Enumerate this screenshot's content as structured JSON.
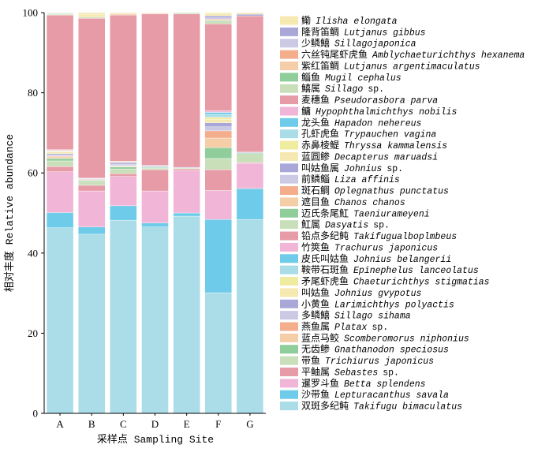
{
  "chart_data": {
    "type": "bar",
    "stacked": true,
    "categories": [
      "A",
      "B",
      "C",
      "D",
      "E",
      "F",
      "G"
    ],
    "xlabel": "采样点 Sampling Site",
    "ylabel": "相对丰度 Relative abundance",
    "ylim": [
      0,
      100
    ],
    "yticks": [
      0,
      20,
      40,
      60,
      80,
      100
    ],
    "legend_position": "right",
    "series": [
      {
        "cn": "鳓",
        "sci": "Ilisha elongata",
        "suffix": "",
        "color": "#f5e8b1",
        "values": [
          0,
          0.4,
          0,
          0.1,
          0,
          0,
          0
        ]
      },
      {
        "cn": "隆背笛鲷",
        "sci": "Lutjanus gibbus",
        "suffix": "",
        "color": "#a9a7d8",
        "values": [
          0,
          0,
          0,
          0,
          0,
          0,
          0
        ]
      },
      {
        "cn": "少鳞鱚",
        "sci": "Sillagojaponica",
        "suffix": "",
        "color": "#cbc9e4",
        "values": [
          0,
          0,
          0,
          0,
          0,
          0,
          0
        ]
      },
      {
        "cn": "六丝钝尾虾虎鱼",
        "sci": "Amblychaeturichthys hexanema",
        "suffix": "",
        "color": "#f4ae8c",
        "values": [
          0,
          0,
          0,
          0,
          0,
          0,
          0
        ]
      },
      {
        "cn": "紫红笛鲷",
        "sci": "Lutjanus argentimaculatus",
        "suffix": "",
        "color": "#f5cea8",
        "values": [
          0,
          0,
          0,
          0,
          0,
          0,
          0
        ]
      },
      {
        "cn": "鲻鱼",
        "sci": "Mugil cephalus",
        "suffix": "",
        "color": "#8fce9b",
        "values": [
          0.1,
          0,
          0,
          0,
          0,
          0,
          0
        ]
      },
      {
        "cn": "鱚属",
        "sci": "Sillago",
        "suffix": "sp.",
        "color": "#c9dfba",
        "values": [
          0.2,
          0,
          0,
          0,
          0.3,
          0,
          0
        ]
      },
      {
        "cn": "麦穗鱼",
        "sci": "Pseudorasbora parva",
        "suffix": "",
        "color": "#e69ba6",
        "values": [
          0,
          0,
          0,
          0,
          0,
          0,
          0
        ]
      },
      {
        "cn": "鳙",
        "sci": "Hypophthalmichthys nobilis",
        "suffix": "",
        "color": "#f0b5d7",
        "values": [
          0,
          0,
          0,
          0,
          0,
          0,
          0
        ]
      },
      {
        "cn": "龙头鱼",
        "sci": "Hapadon nehereus",
        "suffix": "",
        "color": "#6ecbe9",
        "values": [
          0,
          0,
          0,
          0,
          0,
          0,
          0
        ]
      },
      {
        "cn": "孔虾虎鱼",
        "sci": "Trypauchen vagina",
        "suffix": "",
        "color": "#aadde8",
        "values": [
          0,
          0,
          0,
          0,
          0,
          0,
          0
        ]
      },
      {
        "cn": "赤鼻棱鳀",
        "sci": "Thryssa kammalensis",
        "suffix": "",
        "color": "#efeb9f",
        "values": [
          0,
          0,
          0,
          0,
          0,
          0.3,
          0
        ]
      },
      {
        "cn": "蓝圆鲹",
        "sci": "Decapterus maruadsi",
        "suffix": "",
        "color": "#f5e8b1",
        "values": [
          0,
          0.7,
          0.3,
          0,
          0,
          0.5,
          0.4
        ]
      },
      {
        "cn": "叫姑鱼属",
        "sci": "Johnius",
        "suffix": "sp.",
        "color": "#a9a7d8",
        "values": [
          0,
          0,
          0,
          0,
          0,
          0.5,
          0.4
        ]
      },
      {
        "cn": "前鳞鲻",
        "sci": "Liza affinis",
        "suffix": "",
        "color": "#cbc9e4",
        "values": [
          0,
          0,
          0,
          0,
          0,
          0.3,
          0
        ]
      },
      {
        "cn": "斑石鲷",
        "sci": "Oplegnathus punctatus",
        "suffix": "",
        "color": "#f4ae8c",
        "values": [
          0,
          0,
          0,
          0,
          0,
          0.2,
          0
        ]
      },
      {
        "cn": "遮目鱼",
        "sci": "Chanos chanos",
        "suffix": "",
        "color": "#f5cea8",
        "values": [
          0,
          0,
          0.3,
          0.2,
          0,
          0.2,
          0
        ]
      },
      {
        "cn": "迈氏条尾魟",
        "sci": "Taeniurameyeni",
        "suffix": "",
        "color": "#8fce9b",
        "values": [
          0.1,
          0,
          0,
          0,
          0,
          0.3,
          0
        ]
      },
      {
        "cn": "魟属",
        "sci": "Dasyatis",
        "suffix": "sp.",
        "color": "#c9dfba",
        "values": [
          0.2,
          0.3,
          0,
          0,
          0,
          0.5,
          0
        ]
      },
      {
        "cn": "铅点多纪鲀",
        "sci": "Takifugualboplmbeus",
        "suffix": "",
        "color": "#e69ba6",
        "values": [
          33.6,
          39.9,
          36.5,
          37.8,
          38.3,
          21.7,
          34.0
        ]
      },
      {
        "cn": "竹筴鱼",
        "sci": "Trachurus japonicus",
        "suffix": "",
        "color": "#f0b5d7",
        "values": [
          0.2,
          0,
          0,
          0,
          0,
          0.4,
          0
        ]
      },
      {
        "cn": "皮氏叫姑鱼",
        "sci": "Johnius belangerii",
        "suffix": "",
        "color": "#6ecbe9",
        "values": [
          0.1,
          0,
          0,
          0,
          0,
          0.5,
          0
        ]
      },
      {
        "cn": "鞍带石斑鱼",
        "sci": "Epinephelus lanceolatus",
        "suffix": "",
        "color": "#aadde8",
        "values": [
          0.1,
          0,
          0,
          0,
          0,
          0.7,
          0
        ]
      },
      {
        "cn": "矛尾虾虎鱼",
        "sci": "Chaeturichthys stigmatias",
        "suffix": "",
        "color": "#efeb9f",
        "values": [
          0.2,
          0,
          0.1,
          0,
          0,
          0.5,
          0
        ]
      },
      {
        "cn": "叫姑鱼",
        "sci": "Johnius gvypotus",
        "suffix": "",
        "color": "#f5e8b1",
        "values": [
          0.4,
          0.1,
          0.2,
          0.1,
          0,
          0.9,
          0
        ]
      },
      {
        "cn": "小黄鱼",
        "sci": "Larimichthys polyactis",
        "suffix": "",
        "color": "#a9a7d8",
        "values": [
          0.3,
          0.1,
          0.4,
          0.2,
          0,
          1.0,
          0.1
        ]
      },
      {
        "cn": "多鳞鱚",
        "sci": "Sillago sihama",
        "suffix": "",
        "color": "#cbc9e4",
        "values": [
          0.3,
          0.2,
          0.4,
          0.2,
          0.2,
          1.0,
          0.2
        ]
      },
      {
        "cn": "燕鱼属",
        "sci": "Platax",
        "suffix": "sp.",
        "color": "#f4ae8c",
        "values": [
          0.2,
          0.1,
          0.1,
          0,
          0,
          1.8,
          0
        ]
      },
      {
        "cn": "蓝点马鲛",
        "sci": "Scomberomorus niphonius",
        "suffix": "",
        "color": "#f5cea8",
        "values": [
          0.4,
          0.2,
          0.2,
          0,
          0,
          2.4,
          0
        ]
      },
      {
        "cn": "无齿鲹",
        "sci": "Gnathanodon speciosus",
        "suffix": "",
        "color": "#8fce9b",
        "values": [
          0.6,
          0.3,
          0.5,
          0.2,
          0,
          2.7,
          0.3
        ]
      },
      {
        "cn": "带鱼",
        "sci": "Trichiurus japonicus",
        "suffix": "",
        "color": "#c9dfba",
        "values": [
          1.4,
          0.8,
          1.2,
          0.4,
          0.2,
          2.8,
          2.0
        ]
      },
      {
        "cn": "平鲉属",
        "sci": "Sebastes",
        "suffix": "sp.",
        "color": "#e69ba6",
        "values": [
          1.3,
          1.4,
          0.7,
          5.3,
          0.4,
          5.2,
          0.2
        ]
      },
      {
        "cn": "暹罗斗鱼",
        "sci": "Betta splendens",
        "suffix": "",
        "color": "#f0b5d7",
        "values": [
          10.2,
          9.0,
          7.3,
          8.0,
          10.6,
          7.2,
          6.3
        ]
      },
      {
        "cn": "沙带鱼",
        "sci": "Lepturacanthus savala",
        "suffix": "",
        "color": "#6ecbe9",
        "values": [
          3.8,
          1.8,
          3.6,
          1.0,
          0.8,
          18.3,
          7.7
        ]
      },
      {
        "cn": "双斑多纪鲀",
        "sci": "Takifugu bimaculatus",
        "suffix": "",
        "color": "#aadde8",
        "values": [
          46.3,
          44.7,
          48.2,
          46.5,
          49.2,
          30.1,
          48.4
        ]
      }
    ]
  }
}
